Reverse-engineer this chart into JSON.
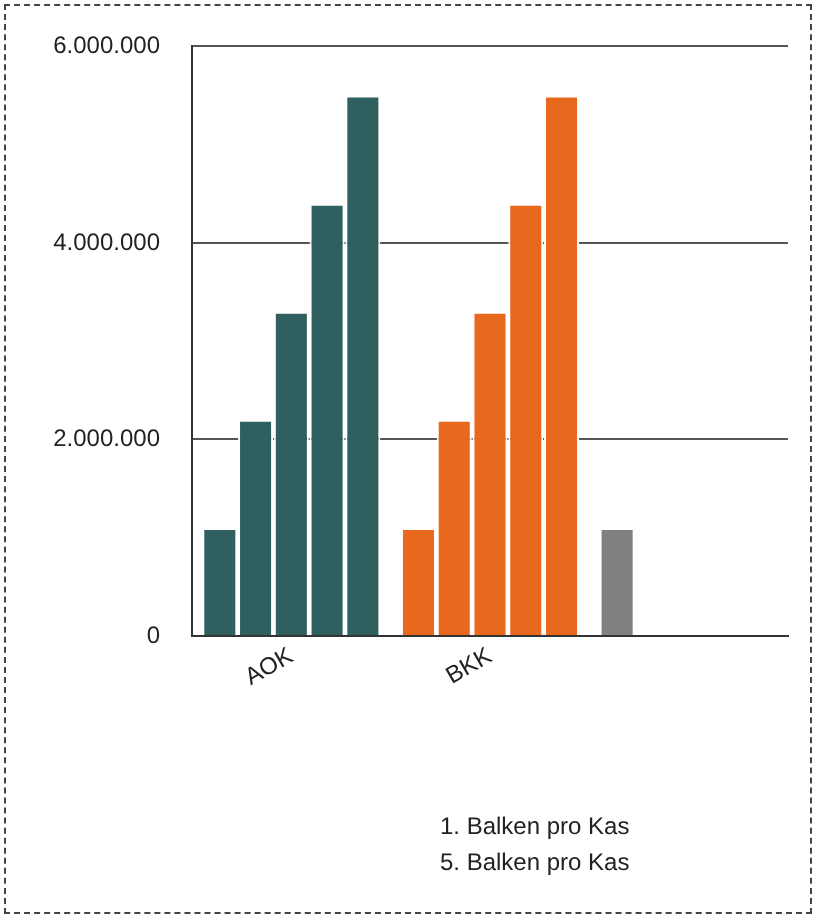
{
  "chart_data": {
    "type": "bar",
    "categories": [
      "AOK",
      "BKK",
      null
    ],
    "series": [
      {
        "colors": [
          "#2f5f5f",
          "#e8681e",
          "#808080"
        ],
        "values": [
          1100000,
          1100000,
          1100000
        ]
      },
      {
        "colors": [
          "#2f5f5f",
          "#e8681e",
          "#808080"
        ],
        "values": [
          2200000,
          2200000,
          null
        ]
      },
      {
        "colors": [
          "#2f5f5f",
          "#e8681e",
          "#808080"
        ],
        "values": [
          3300000,
          3300000,
          null
        ]
      },
      {
        "colors": [
          "#2f5f5f",
          "#e8681e",
          "#808080"
        ],
        "values": [
          4400000,
          4400000,
          null
        ]
      },
      {
        "colors": [
          "#2f5f5f",
          "#e8681e",
          "#808080"
        ],
        "values": [
          5500000,
          5500000,
          null
        ]
      }
    ],
    "ylim": [
      0,
      6000000
    ],
    "yticks": [
      0,
      {
        "value": 2000000,
        "label": "2.000.000"
      },
      {
        "value": 4000000,
        "label": "4.000.000"
      },
      {
        "value": 6000000,
        "label": "6.000.000"
      }
    ],
    "grid": "y",
    "annotations": [
      "1. Balken pro Kas",
      "5. Balken pro Kas"
    ]
  }
}
